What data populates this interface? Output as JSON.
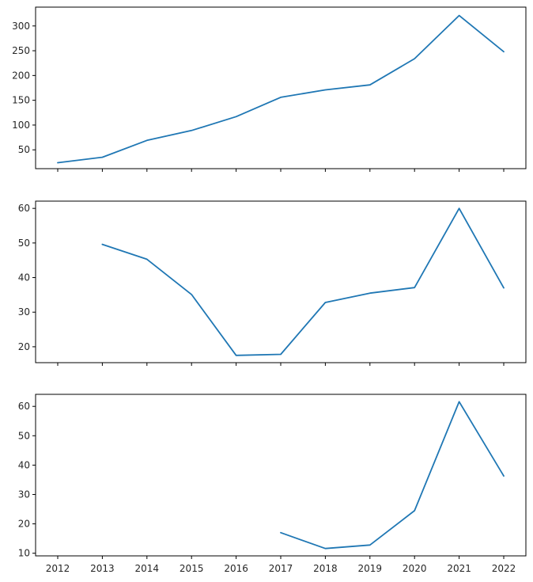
{
  "chart_data": [
    {
      "type": "line",
      "title": "",
      "xlabel": "",
      "ylabel": "",
      "x": [
        "2012",
        "2013",
        "2014",
        "2015",
        "2016",
        "2017",
        "2018",
        "2019",
        "2020",
        "2021",
        "2022"
      ],
      "series": [
        {
          "values": [
            24,
            35,
            69,
            89,
            117,
            156,
            171,
            181,
            234,
            321,
            248
          ],
          "color": "#1f77b4"
        }
      ],
      "ylim": [
        12,
        338
      ],
      "yticks": [
        50,
        100,
        150,
        200,
        250,
        300
      ],
      "ytick_labels": [
        "50",
        "100",
        "150",
        "200",
        "250",
        "300"
      ],
      "show_xtick_labels": false,
      "grid": false
    },
    {
      "type": "line",
      "title": "",
      "xlabel": "",
      "ylabel": "",
      "x": [
        "2012",
        "2013",
        "2014",
        "2015",
        "2016",
        "2017",
        "2018",
        "2019",
        "2020",
        "2021",
        "2022"
      ],
      "series": [
        {
          "values": [
            null,
            49.6,
            45.3,
            35.1,
            17.5,
            17.8,
            32.8,
            35.5,
            37.1,
            60.0,
            37.0
          ],
          "color": "#1f77b4"
        }
      ],
      "ylim": [
        15.4,
        62.1
      ],
      "yticks": [
        20,
        30,
        40,
        50,
        60
      ],
      "ytick_labels": [
        "20",
        "30",
        "40",
        "50",
        "60"
      ],
      "show_xtick_labels": false,
      "grid": false
    },
    {
      "type": "line",
      "title": "",
      "xlabel": "",
      "ylabel": "",
      "x": [
        "2012",
        "2013",
        "2014",
        "2015",
        "2016",
        "2017",
        "2018",
        "2019",
        "2020",
        "2021",
        "2022"
      ],
      "series": [
        {
          "values": [
            null,
            null,
            null,
            null,
            null,
            17.0,
            11.6,
            12.8,
            24.5,
            61.6,
            36.3
          ],
          "color": "#1f77b4"
        }
      ],
      "ylim": [
        9.1,
        64.1
      ],
      "yticks": [
        10,
        20,
        30,
        40,
        50,
        60
      ],
      "ytick_labels": [
        "10",
        "20",
        "30",
        "40",
        "50",
        "60"
      ],
      "show_xtick_labels": true,
      "grid": false
    }
  ]
}
